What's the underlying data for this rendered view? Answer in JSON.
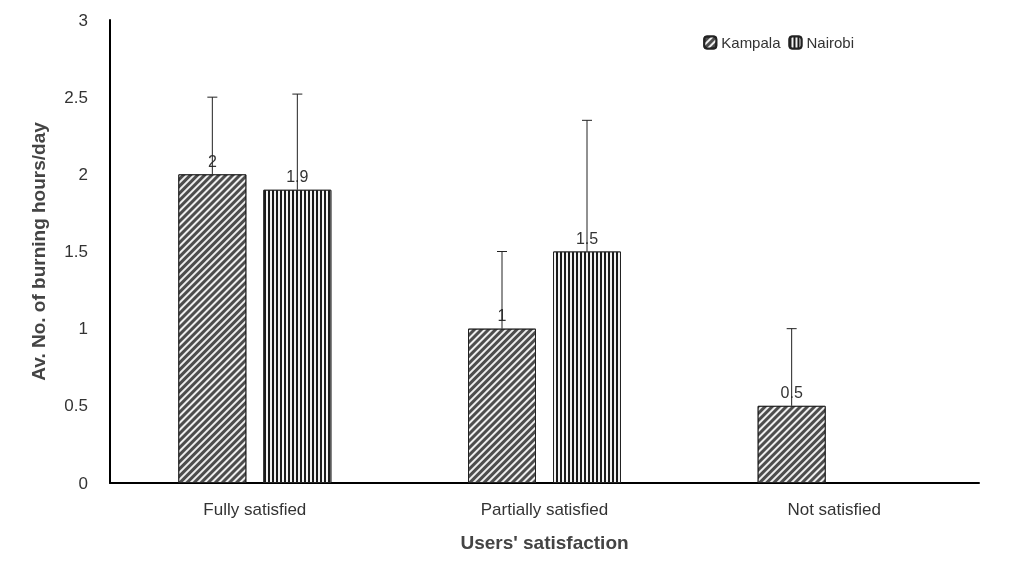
{
  "chart_data": {
    "type": "bar",
    "xlabel": "Users' satisfaction",
    "ylabel": "Av. No. of burning hours/day",
    "categories": [
      "Fully satisfied",
      "Partially satisfied",
      "Not satisfied"
    ],
    "series": [
      {
        "name": "Kampala",
        "color": "#4d4d4d",
        "values": [
          2,
          1,
          0.5
        ],
        "errors": [
          [
            2,
            2.5
          ],
          [
            1,
            1.5
          ],
          [
            0.5,
            1.0
          ]
        ]
      },
      {
        "name": "Nairobi",
        "color": "#1a1a1a",
        "values": [
          1.9,
          1.5,
          null
        ],
        "errors": [
          [
            1.9,
            2.52
          ],
          [
            1.5,
            2.35
          ],
          null
        ]
      }
    ],
    "ylim": [
      0,
      3
    ],
    "yticks": [
      0,
      0.5,
      1,
      1.5,
      2,
      2.5,
      3
    ],
    "grid": false,
    "legend": "top right",
    "data_labels": true
  }
}
